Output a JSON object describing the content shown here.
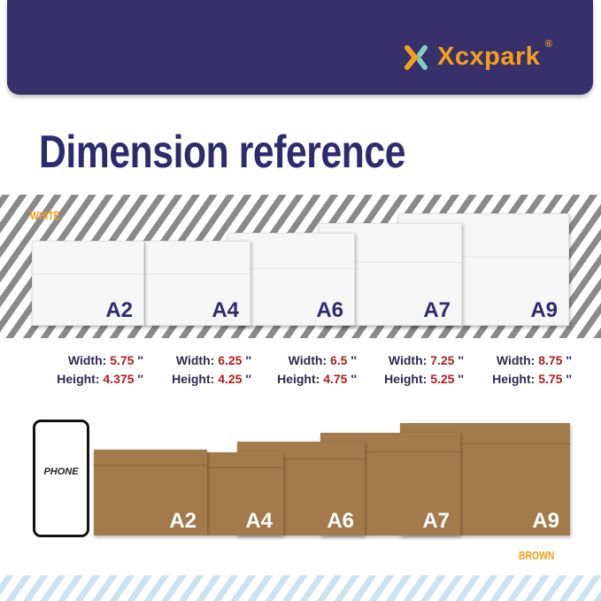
{
  "brand": {
    "name": "Xcxpark",
    "registered": "®",
    "color": "#f5a01a",
    "header_color": "#37306b"
  },
  "title": "Dimension reference",
  "white": {
    "tag": "WHITE",
    "envelopes": [
      "A2",
      "A4",
      "A6",
      "A7",
      "A9"
    ]
  },
  "dimensions": [
    {
      "size": "A2",
      "width_label": "Width:",
      "width": "5.75",
      "height_label": "Height:",
      "height": "4.375",
      "unit": "''"
    },
    {
      "size": "A4",
      "width_label": "Width:",
      "width": "6.25",
      "height_label": "Height:",
      "height": "4.25",
      "unit": "''"
    },
    {
      "size": "A6",
      "width_label": "Width:",
      "width": "6.5",
      "height_label": "Height:",
      "height": "4.75",
      "unit": "''"
    },
    {
      "size": "A7",
      "width_label": "Width:",
      "width": "7.25",
      "height_label": "Height:",
      "height": "5.25",
      "unit": "''"
    },
    {
      "size": "A9",
      "width_label": "Width:",
      "width": "8.75",
      "height_label": "Height:",
      "height": "5.75",
      "unit": "''"
    }
  ],
  "brown": {
    "tag": "BROWN",
    "envelopes": [
      "A2",
      "A4",
      "A6",
      "A7",
      "A9"
    ]
  },
  "phone": {
    "label": "PHONE"
  }
}
